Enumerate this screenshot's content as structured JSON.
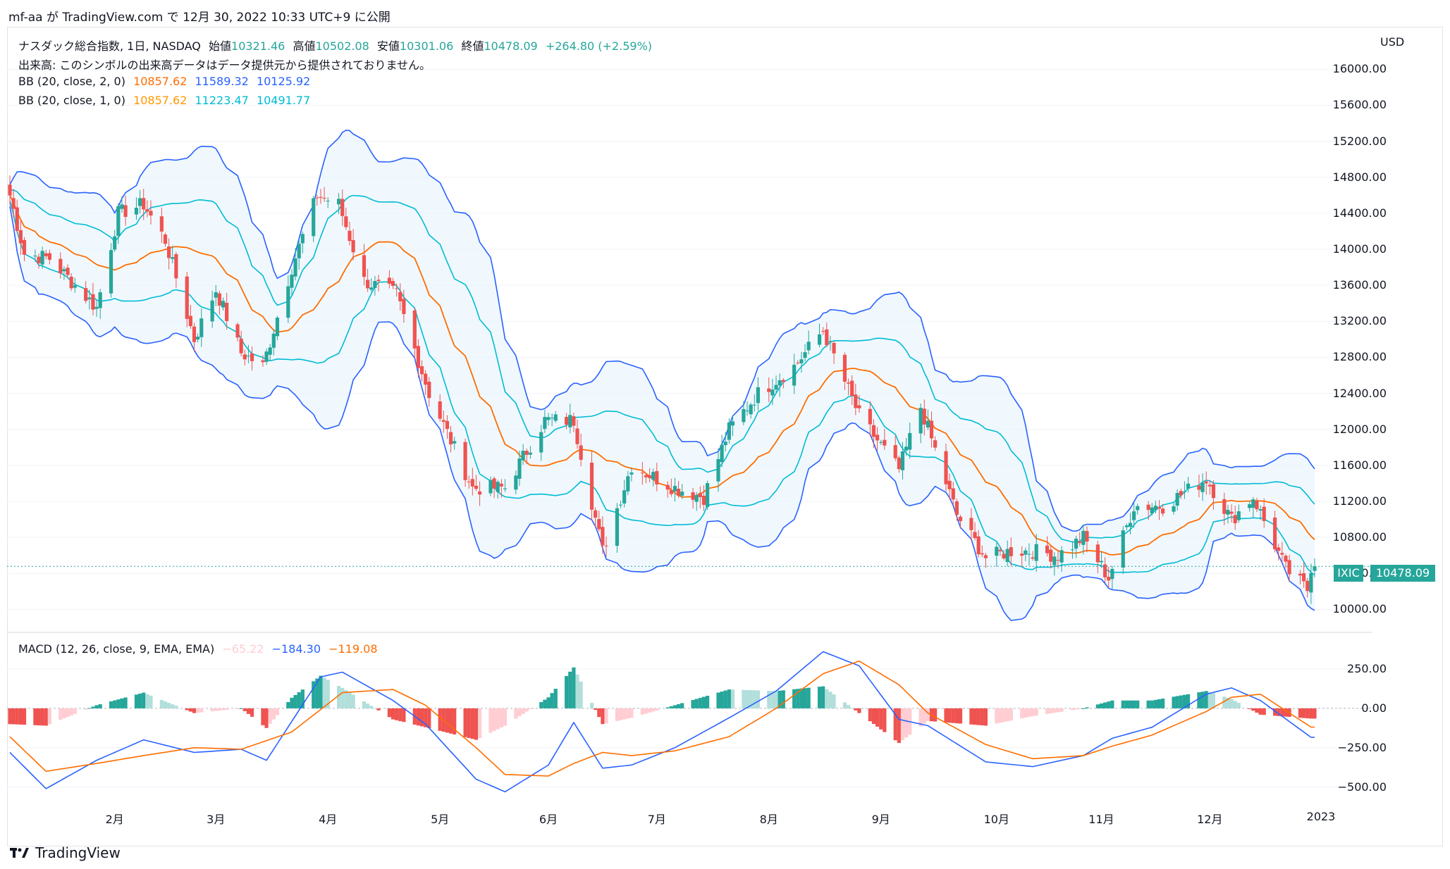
{
  "header": {
    "text": "mf-aa が TradingView.com で 12月 30, 2022 10:33 UTC+9 に公開"
  },
  "legend": {
    "main": {
      "title": "ナスダック総合指数, 1日, NASDAQ",
      "open_label": "始値",
      "open": "10321.46",
      "high_label": "高値",
      "high": "10502.08",
      "low_label": "安値",
      "low": "10301.06",
      "close_label": "終値",
      "close": "10478.09",
      "change": "+264.80 (+2.59%)"
    },
    "volume": "出来高: このシンボルの出来高データはデータ提供元から提供されておりません。",
    "bb2": {
      "name": "BB (20, close, 2, 0)",
      "basis": "10857.62",
      "upper": "11589.32",
      "lower": "10125.92"
    },
    "bb1": {
      "name": "BB (20, close, 1, 0)",
      "basis": "10857.62",
      "upper": "11223.47",
      "lower": "10491.77"
    },
    "macd": {
      "name": "MACD (12, 26, close, 9, EMA, EMA)",
      "hist": "−65.22",
      "macd": "−184.30",
      "signal": "−119.08"
    }
  },
  "axis": {
    "currency": "USD"
  },
  "price_label": {
    "symbol": "IXIC",
    "value": "10478.09"
  },
  "footer": {
    "brand": "TradingView"
  },
  "colors": {
    "up": "#26a69a",
    "down": "#ef5350",
    "bb2": "#2962ff",
    "bb1": "#00bcd4",
    "basis": "#ff6d00",
    "band_fill": "#e3f2fd"
  },
  "chart_data": [
    {
      "type": "candlestick",
      "title": "ナスダック総合指数, 1日, NASDAQ",
      "ylim": [
        9870,
        16300
      ],
      "yticks": [
        "10000.00",
        "10400.00",
        "10800.00",
        "11200.00",
        "11600.00",
        "12000.00",
        "12400.00",
        "12800.00",
        "13200.00",
        "13600.00",
        "14000.00",
        "14400.00",
        "14800.00",
        "15200.00",
        "15600.00",
        "16000.00"
      ],
      "xticks": [
        "2月",
        "3月",
        "4月",
        "5月",
        "6月",
        "7月",
        "8月",
        "9月",
        "10月",
        "11月",
        "12月",
        "2023"
      ],
      "close_path": [
        [
          "2022-01-03",
          14600
        ],
        [
          "2022-01-07",
          13950
        ],
        [
          "2022-01-14",
          13900
        ],
        [
          "2022-01-21",
          13600
        ],
        [
          "2022-01-27",
          13350
        ],
        [
          "2022-02-02",
          14400
        ],
        [
          "2022-02-09",
          14500
        ],
        [
          "2022-02-15",
          14100
        ],
        [
          "2022-02-23",
          13000
        ],
        [
          "2022-03-01",
          13550
        ],
        [
          "2022-03-08",
          12850
        ],
        [
          "2022-03-14",
          12700
        ],
        [
          "2022-03-22",
          13800
        ],
        [
          "2022-03-29",
          14600
        ],
        [
          "2022-04-04",
          14500
        ],
        [
          "2022-04-11",
          13650
        ],
        [
          "2022-04-20",
          13500
        ],
        [
          "2022-04-29",
          12400
        ],
        [
          "2022-05-11",
          11350
        ],
        [
          "2022-05-20",
          11350
        ],
        [
          "2022-05-31",
          12100
        ],
        [
          "2022-06-08",
          12100
        ],
        [
          "2022-06-16",
          10650
        ],
        [
          "2022-06-24",
          11600
        ],
        [
          "2022-07-06",
          11350
        ],
        [
          "2022-07-14",
          11250
        ],
        [
          "2022-07-21",
          12000
        ],
        [
          "2022-07-29",
          12400
        ],
        [
          "2022-08-08",
          12700
        ],
        [
          "2022-08-16",
          13100
        ],
        [
          "2022-08-26",
          12150
        ],
        [
          "2022-09-06",
          11550
        ],
        [
          "2022-09-12",
          12250
        ],
        [
          "2022-09-22",
          11050
        ],
        [
          "2022-09-30",
          10575
        ],
        [
          "2022-10-07",
          10650
        ],
        [
          "2022-10-13",
          10650
        ],
        [
          "2022-10-20",
          10600
        ],
        [
          "2022-10-27",
          10800
        ],
        [
          "2022-11-03",
          10350
        ],
        [
          "2022-11-10",
          11150
        ],
        [
          "2022-11-18",
          11150
        ],
        [
          "2022-11-30",
          11450
        ],
        [
          "2022-12-07",
          11000
        ],
        [
          "2022-12-13",
          11250
        ],
        [
          "2022-12-22",
          10450
        ],
        [
          "2022-12-28",
          10220
        ],
        [
          "2022-12-29",
          10478
        ]
      ],
      "last_close": 10478.09
    },
    {
      "type": "line",
      "title": "MACD (12, 26, close, 9, EMA, EMA)",
      "ylim": [
        -600,
        420
      ],
      "yticks": [
        "250.00",
        "0.00",
        "−250.00",
        "−500.00"
      ],
      "macd_path": [
        [
          "2022-01-03",
          -280
        ],
        [
          "2022-01-13",
          -510
        ],
        [
          "2022-01-27",
          -330
        ],
        [
          "2022-02-09",
          -200
        ],
        [
          "2022-02-23",
          -280
        ],
        [
          "2022-03-08",
          -260
        ],
        [
          "2022-03-15",
          -330
        ],
        [
          "2022-03-30",
          200
        ],
        [
          "2022-04-05",
          230
        ],
        [
          "2022-04-19",
          50
        ],
        [
          "2022-04-28",
          -100
        ],
        [
          "2022-05-12",
          -450
        ],
        [
          "2022-05-20",
          -530
        ],
        [
          "2022-06-01",
          -360
        ],
        [
          "2022-06-08",
          -90
        ],
        [
          "2022-06-16",
          -380
        ],
        [
          "2022-06-24",
          -360
        ],
        [
          "2022-07-06",
          -250
        ],
        [
          "2022-07-21",
          -60
        ],
        [
          "2022-08-03",
          110
        ],
        [
          "2022-08-16",
          360
        ],
        [
          "2022-08-26",
          270
        ],
        [
          "2022-09-06",
          -70
        ],
        [
          "2022-09-14",
          -110
        ],
        [
          "2022-09-30",
          -340
        ],
        [
          "2022-10-13",
          -370
        ],
        [
          "2022-10-27",
          -300
        ],
        [
          "2022-11-04",
          -190
        ],
        [
          "2022-11-15",
          -120
        ],
        [
          "2022-11-30",
          90
        ],
        [
          "2022-12-07",
          130
        ],
        [
          "2022-12-15",
          50
        ],
        [
          "2022-12-29",
          -184
        ]
      ],
      "signal_path": [
        [
          "2022-01-03",
          -180
        ],
        [
          "2022-01-13",
          -400
        ],
        [
          "2022-01-27",
          -350
        ],
        [
          "2022-02-09",
          -300
        ],
        [
          "2022-02-23",
          -250
        ],
        [
          "2022-03-08",
          -260
        ],
        [
          "2022-03-22",
          -150
        ],
        [
          "2022-04-05",
          100
        ],
        [
          "2022-04-19",
          120
        ],
        [
          "2022-04-28",
          20
        ],
        [
          "2022-05-12",
          -250
        ],
        [
          "2022-05-20",
          -420
        ],
        [
          "2022-06-01",
          -430
        ],
        [
          "2022-06-08",
          -350
        ],
        [
          "2022-06-16",
          -280
        ],
        [
          "2022-06-24",
          -300
        ],
        [
          "2022-07-06",
          -270
        ],
        [
          "2022-07-21",
          -180
        ],
        [
          "2022-08-03",
          0
        ],
        [
          "2022-08-16",
          220
        ],
        [
          "2022-08-26",
          300
        ],
        [
          "2022-09-06",
          150
        ],
        [
          "2022-09-14",
          -30
        ],
        [
          "2022-09-30",
          -230
        ],
        [
          "2022-10-13",
          -320
        ],
        [
          "2022-10-27",
          -300
        ],
        [
          "2022-11-04",
          -240
        ],
        [
          "2022-11-15",
          -170
        ],
        [
          "2022-11-30",
          -20
        ],
        [
          "2022-12-07",
          70
        ],
        [
          "2022-12-15",
          90
        ],
        [
          "2022-12-29",
          -119
        ]
      ]
    }
  ]
}
